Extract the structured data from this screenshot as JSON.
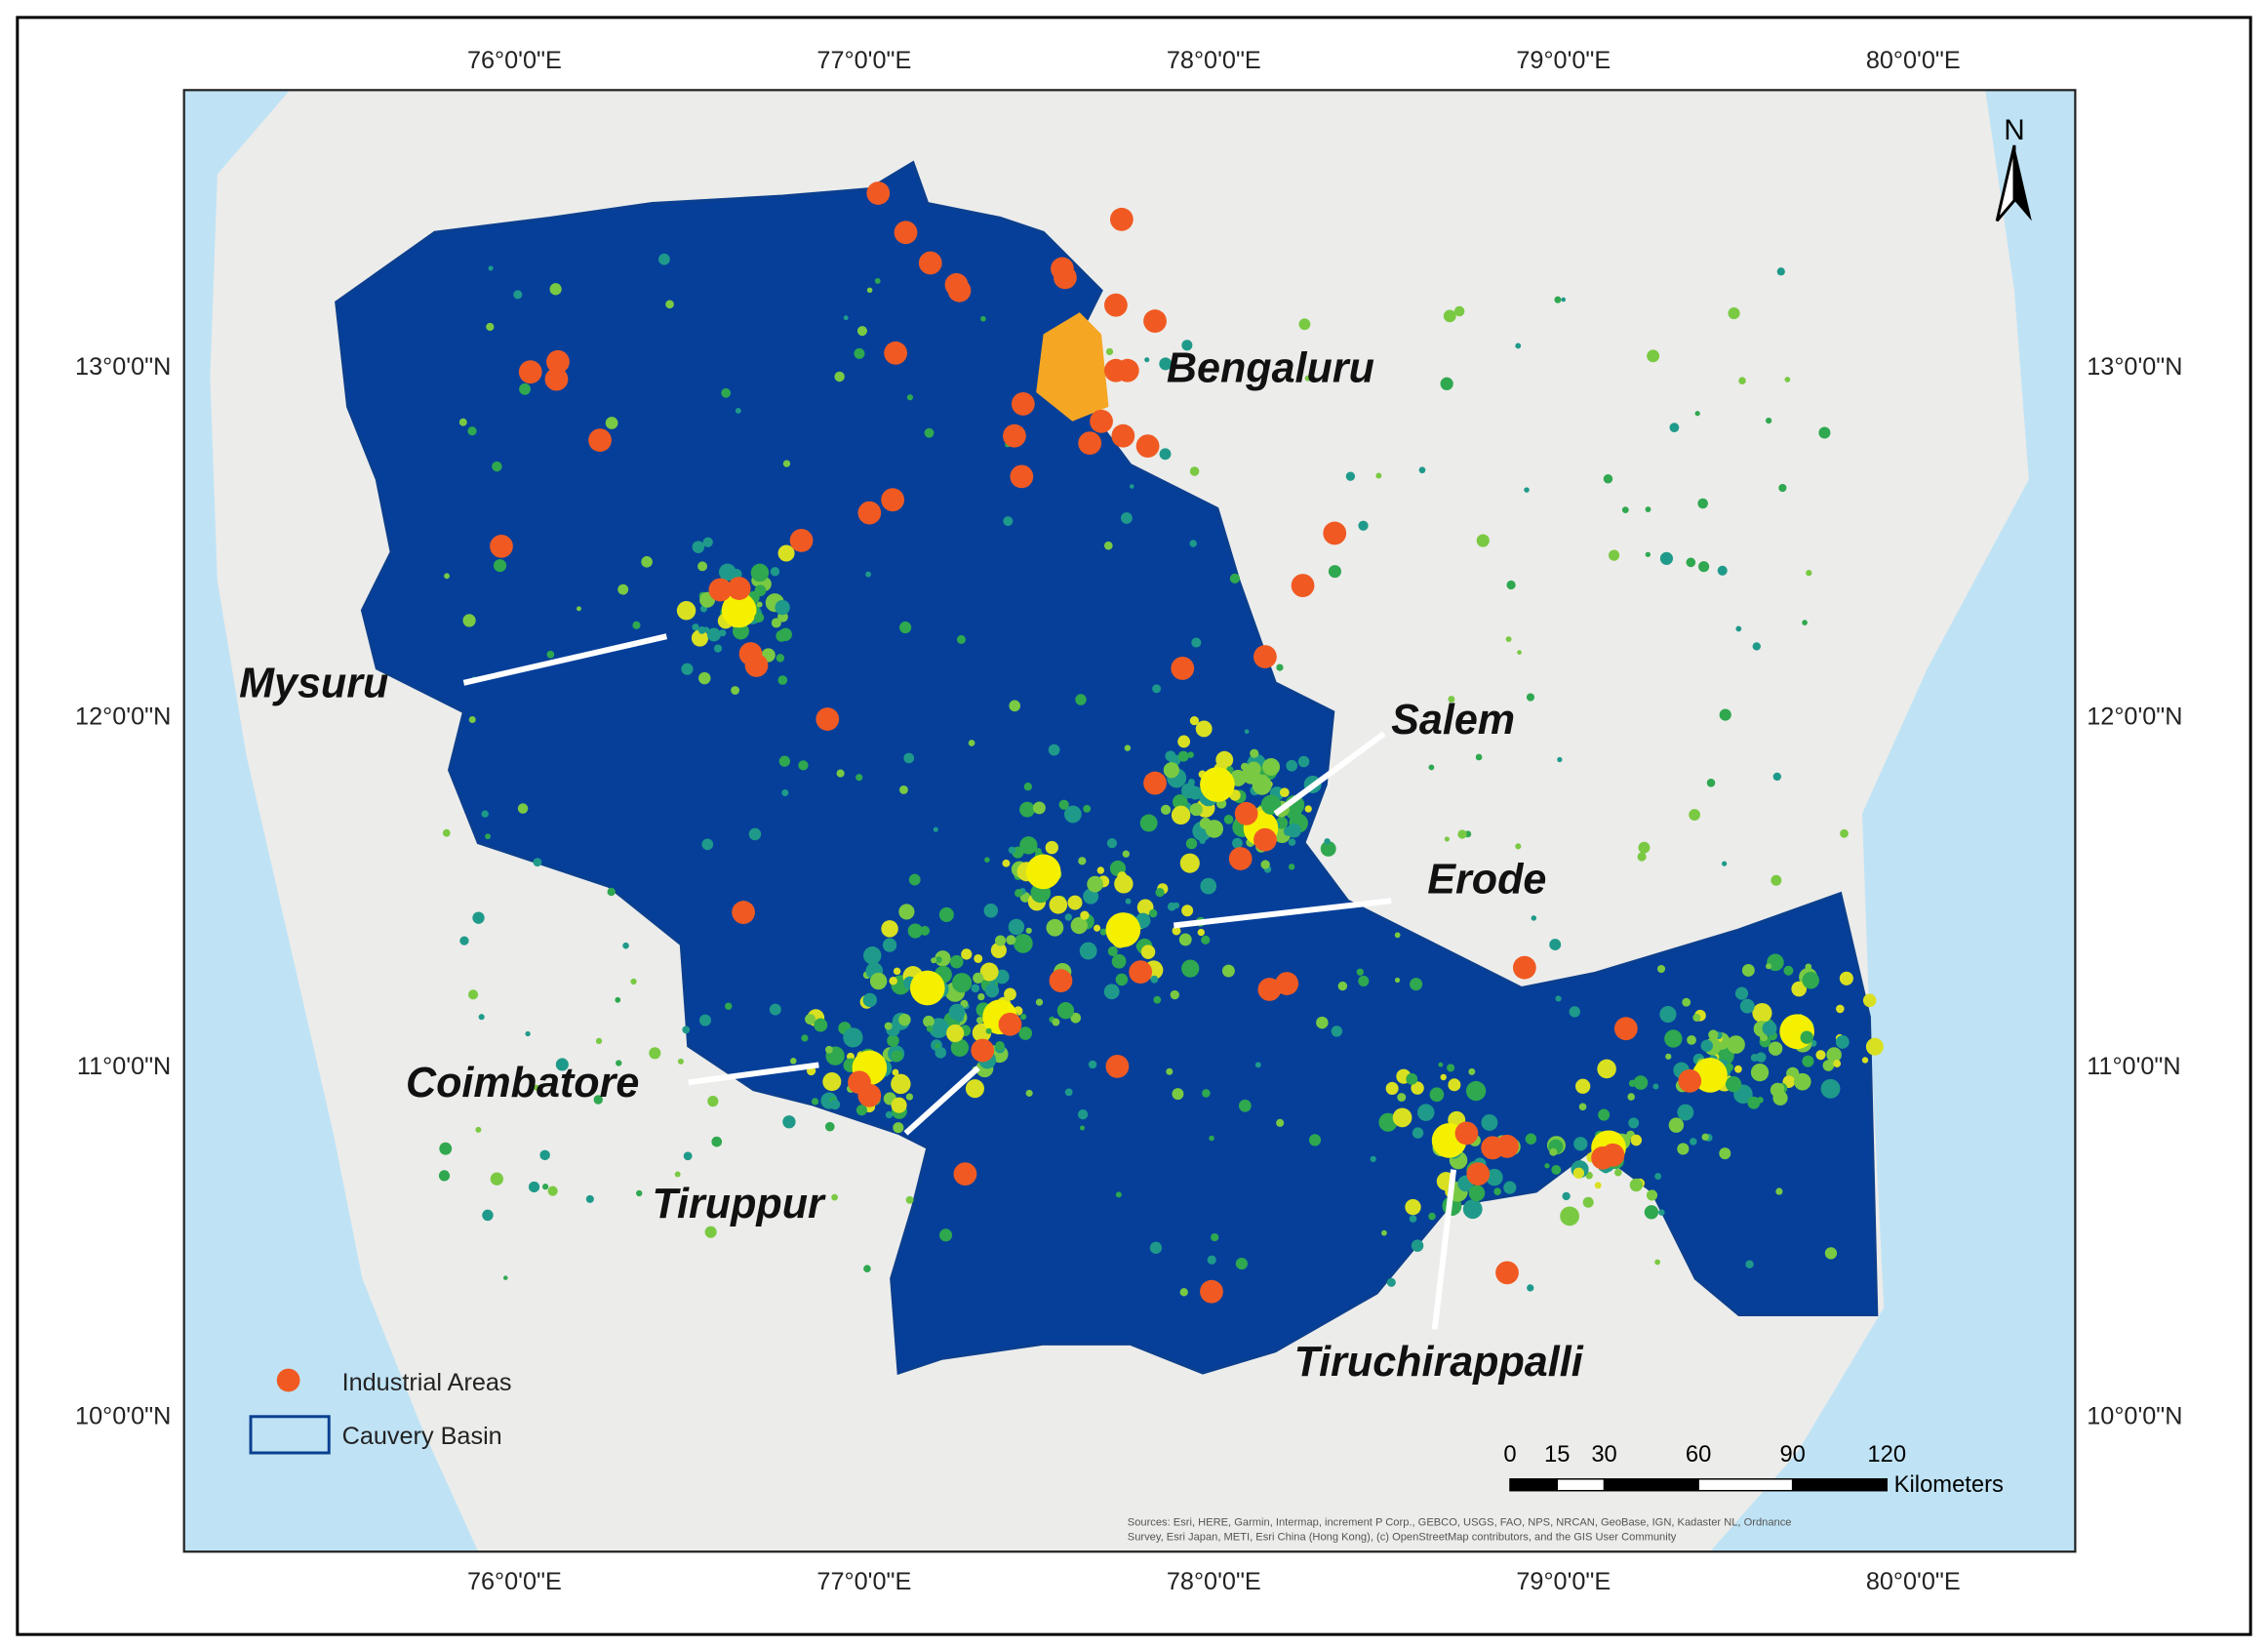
{
  "map": {
    "lon_labels": [
      "76°0'0\"E",
      "77°0'0\"E",
      "78°0'0\"E",
      "79°0'0\"E",
      "80°0'0\"E"
    ],
    "lat_labels": [
      "13°0'0\"N",
      "12°0'0\"N",
      "11°0'0\"N",
      "10°0'0\"N"
    ],
    "north": "N",
    "cities": [
      {
        "label": "Bengaluru"
      },
      {
        "label": "Mysuru"
      },
      {
        "label": "Salem"
      },
      {
        "label": "Erode"
      },
      {
        "label": "Coimbatore"
      },
      {
        "label": "Tiruppur"
      },
      {
        "label": "Tiruchirappalli"
      }
    ],
    "legend": [
      "Industrial Areas",
      "Cauvery Basin"
    ],
    "scale_bar": {
      "ticks": [
        0,
        15,
        30,
        60,
        90,
        120
      ],
      "unit": "Kilometers"
    },
    "attribution": [
      "Sources: Esri, HERE, Garmin, Intermap, increment P Corp., GEBCO, USGS, FAO, NPS, NRCAN, GeoBase, IGN, Kadaster NL, Ordnance",
      "Survey, Esri Japan, METI, Esri China (Hong Kong), (c) OpenStreetMap contributors, and the GIS User Community"
    ]
  }
}
